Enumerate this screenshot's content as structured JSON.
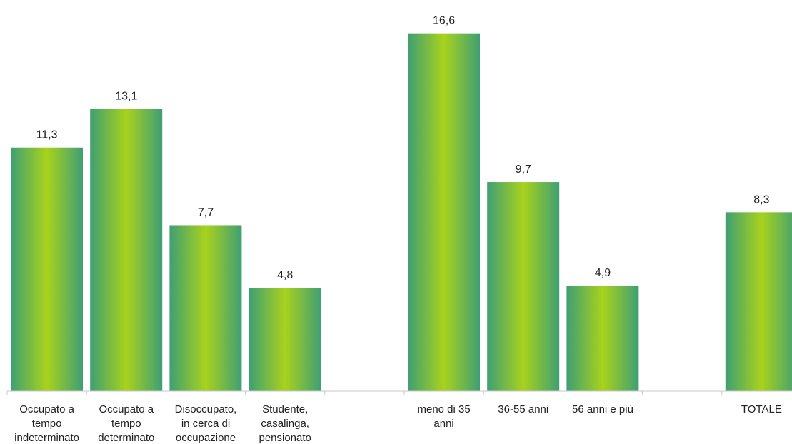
{
  "chart_data": {
    "type": "bar",
    "categories": [
      "Occupato a tempo indeterminato",
      "Occupato a tempo determinato",
      "Disoccupato, in cerca di occupazione",
      "Studente, casalinga, pensionato",
      "",
      "meno di 35 anni",
      "36-55 anni",
      "56 anni e più",
      "",
      "TOTALE"
    ],
    "category_lines": [
      [
        "Occupato a",
        "tempo",
        "indeterminato"
      ],
      [
        "Occupato a",
        "tempo",
        "determinato"
      ],
      [
        "Disoccupato,",
        "in cerca di",
        "occupazione"
      ],
      [
        "Studente,",
        "casalinga,",
        "pensionato"
      ],
      [],
      [
        "meno di 35",
        "anni"
      ],
      [
        "36-55 anni"
      ],
      [
        "56 anni e più"
      ],
      [],
      [
        "TOTALE"
      ]
    ],
    "values": [
      11.3,
      13.1,
      7.7,
      4.8,
      null,
      16.6,
      9.7,
      4.9,
      null,
      8.3
    ],
    "value_labels": [
      "11,3",
      "13,1",
      "7,7",
      "4,8",
      "",
      "16,6",
      "9,7",
      "4,9",
      "",
      "8,3"
    ],
    "ylim": [
      0,
      18
    ],
    "grid": false,
    "legend": "none",
    "colors": {
      "bar_edge": "#3f9f74",
      "bar_center": "#a8d21c",
      "axis": "#c8c8c8",
      "text": "#222222"
    }
  }
}
